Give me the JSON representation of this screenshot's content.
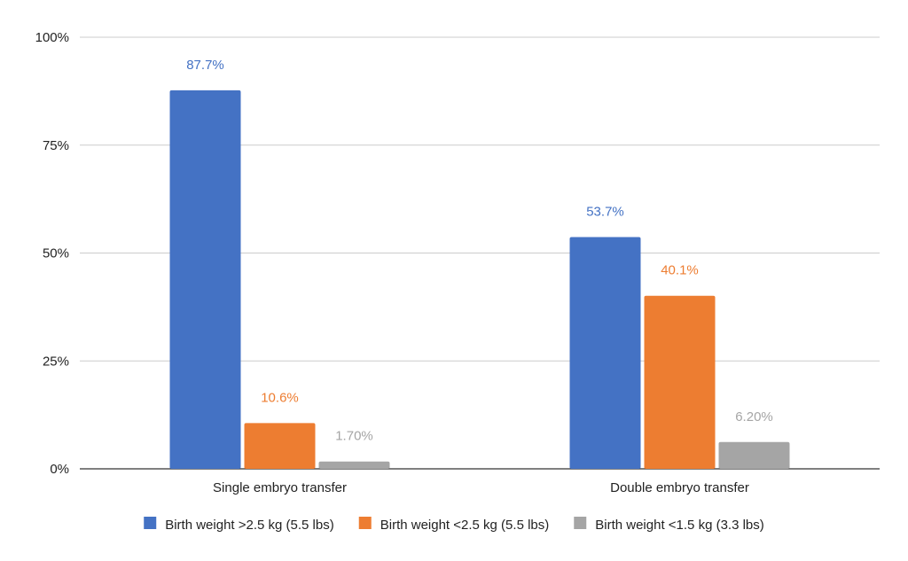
{
  "chart_data": {
    "type": "bar",
    "categories": [
      "Single embryo transfer",
      "Double embryo transfer"
    ],
    "series": [
      {
        "name": "Birth weight >2.5 kg (5.5 lbs)",
        "color": "#4472c4",
        "values": [
          87.7,
          53.7
        ],
        "labels": [
          "87.7%",
          "53.7%"
        ]
      },
      {
        "name": "Birth weight <2.5 kg (5.5 lbs)",
        "color": "#ed7d31",
        "values": [
          10.6,
          40.1
        ],
        "labels": [
          "10.6%",
          "40.1%"
        ]
      },
      {
        "name": "Birth weight <1.5 kg (3.3 lbs)",
        "color": "#a5a5a5",
        "values": [
          1.7,
          6.2
        ],
        "labels": [
          "1.70%",
          "6.20%"
        ]
      }
    ],
    "yticks": [
      0,
      25,
      50,
      75,
      100
    ],
    "ytick_labels": [
      "0%",
      "25%",
      "50%",
      "75%",
      "100%"
    ],
    "ylim": [
      0,
      100
    ],
    "grid": true,
    "legend_position": "bottom"
  }
}
